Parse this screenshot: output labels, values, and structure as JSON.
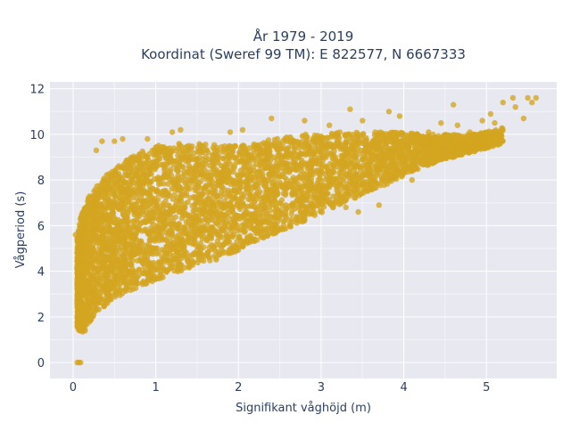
{
  "chart_data": {
    "type": "scatter",
    "title_lines": [
      "År 1979 - 2019",
      "Koordinat (Sweref 99 TM): E 822577, N 6667333"
    ],
    "xlabel": "Signifikant våghöjd (m)",
    "ylabel": "Vågperiod (s)",
    "xlim": [
      -0.28,
      5.85
    ],
    "ylim": [
      -0.7,
      12.3
    ],
    "xticks": [
      0,
      1,
      2,
      3,
      4,
      5
    ],
    "yticks": [
      0,
      2,
      4,
      6,
      8,
      10,
      12
    ],
    "grid": true,
    "legend": "none",
    "marker_color": "#D4A520",
    "plot_background": "#E8E8F0",
    "series": [
      {
        "envelope": {
          "x": [
            0.05,
            0.1,
            0.15,
            0.2,
            0.3,
            0.4,
            0.5,
            0.6,
            0.8,
            1.0,
            1.2,
            1.4,
            1.6,
            1.8,
            2.0,
            2.2,
            2.4,
            2.6,
            2.8,
            3.0,
            3.2,
            3.4,
            3.6,
            3.8,
            4.0,
            4.2,
            4.4,
            4.6,
            4.8,
            5.0,
            5.2
          ],
          "y_low": [
            1.5,
            1.3,
            1.4,
            1.8,
            2.2,
            2.5,
            2.8,
            3.0,
            3.3,
            3.6,
            3.9,
            4.1,
            4.3,
            4.6,
            4.9,
            5.3,
            5.6,
            5.9,
            6.2,
            6.5,
            6.9,
            7.2,
            7.5,
            7.8,
            8.2,
            8.5,
            8.8,
            9.0,
            9.2,
            9.4,
            9.6
          ],
          "y_high": [
            5.5,
            6.5,
            7.0,
            7.4,
            7.8,
            8.2,
            8.5,
            8.8,
            9.2,
            9.5,
            9.6,
            9.6,
            9.6,
            9.5,
            9.5,
            9.6,
            9.8,
            9.9,
            10.0,
            10.0,
            10.1,
            10.1,
            10.1,
            10.1,
            10.1,
            10.0,
            10.0,
            10.0,
            10.0,
            10.1,
            10.3
          ]
        },
        "outliers": [
          {
            "x": 0.05,
            "y": 0.0
          },
          {
            "x": 0.07,
            "y": 0.0
          },
          {
            "x": 0.09,
            "y": 0.0
          },
          {
            "x": 0.03,
            "y": 5.6
          },
          {
            "x": 0.28,
            "y": 9.3
          },
          {
            "x": 0.35,
            "y": 9.7
          },
          {
            "x": 0.5,
            "y": 9.7
          },
          {
            "x": 0.6,
            "y": 9.8
          },
          {
            "x": 0.9,
            "y": 9.8
          },
          {
            "x": 1.2,
            "y": 10.1
          },
          {
            "x": 1.3,
            "y": 10.2
          },
          {
            "x": 1.9,
            "y": 10.1
          },
          {
            "x": 2.05,
            "y": 10.2
          },
          {
            "x": 2.4,
            "y": 10.7
          },
          {
            "x": 2.8,
            "y": 10.6
          },
          {
            "x": 3.1,
            "y": 10.4
          },
          {
            "x": 3.35,
            "y": 11.1
          },
          {
            "x": 3.5,
            "y": 10.6
          },
          {
            "x": 3.82,
            "y": 11.0
          },
          {
            "x": 3.95,
            "y": 10.8
          },
          {
            "x": 4.3,
            "y": 10.1
          },
          {
            "x": 4.45,
            "y": 10.5
          },
          {
            "x": 4.6,
            "y": 11.3
          },
          {
            "x": 4.65,
            "y": 10.4
          },
          {
            "x": 4.8,
            "y": 10.1
          },
          {
            "x": 4.95,
            "y": 10.6
          },
          {
            "x": 5.05,
            "y": 10.9
          },
          {
            "x": 5.1,
            "y": 10.5
          },
          {
            "x": 5.2,
            "y": 11.4
          },
          {
            "x": 5.32,
            "y": 11.6
          },
          {
            "x": 5.35,
            "y": 11.2
          },
          {
            "x": 5.45,
            "y": 10.7
          },
          {
            "x": 5.5,
            "y": 11.6
          },
          {
            "x": 5.55,
            "y": 11.4
          },
          {
            "x": 5.6,
            "y": 11.6
          },
          {
            "x": 3.3,
            "y": 6.8
          },
          {
            "x": 3.45,
            "y": 6.6
          },
          {
            "x": 3.7,
            "y": 6.9
          },
          {
            "x": 4.1,
            "y": 8.0
          }
        ]
      }
    ]
  }
}
